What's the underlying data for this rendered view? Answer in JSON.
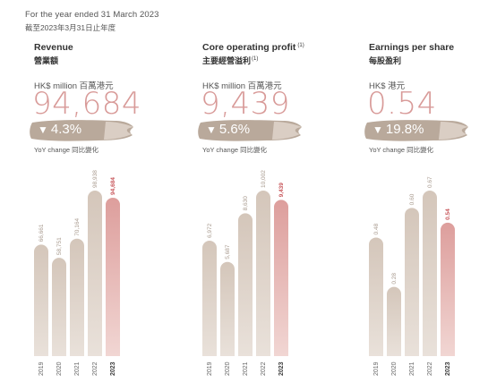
{
  "header": {
    "period_en": "For the year ended 31 March 2023",
    "period_zh": "截至2023年3月31日止年度"
  },
  "panels": [
    {
      "title_en": "Revenue",
      "title_zh": "營業額",
      "title_note": "",
      "unit": "HK$ million 百萬港元",
      "value": "94,684",
      "change": "4.3%",
      "change_direction": "down",
      "change_label": "YoY change 同比變化"
    },
    {
      "title_en": "Core operating profit",
      "title_zh": "主要經營溢利",
      "title_note": "(1)",
      "unit": "HK$ million 百萬港元",
      "value": "9,439",
      "change": "5.6%",
      "change_direction": "down",
      "change_label": "YoY change 同比變化"
    },
    {
      "title_en": "Earnings per share",
      "title_zh": "每股盈利",
      "title_note": "",
      "unit": "HK$ 港元",
      "value": "0.54",
      "change": "19.8%",
      "change_direction": "down",
      "change_label": "YoY change 同比變化"
    }
  ],
  "colors": {
    "accent": "#d89a98",
    "bar_past": "#cfc1b5",
    "bar_current": "#e0a8a6",
    "label_current": "#c8585c",
    "brush": "#b9a99b"
  },
  "chart_data": [
    {
      "type": "bar",
      "title": "Revenue",
      "categories": [
        "2019",
        "2020",
        "2021",
        "2022",
        "2023"
      ],
      "values": [
        66661,
        58751,
        70164,
        98938,
        94684
      ],
      "labels": [
        "66,661",
        "58,751",
        "70,164",
        "98,938",
        "94,684"
      ],
      "ylim": [
        0,
        98938
      ],
      "grid": false
    },
    {
      "type": "bar",
      "title": "Core operating profit",
      "categories": [
        "2019",
        "2020",
        "2021",
        "2022",
        "2023"
      ],
      "values": [
        6972,
        5687,
        8630,
        10002,
        9439
      ],
      "labels": [
        "6,972",
        "5,687",
        "8,630",
        "10,002",
        "9,439"
      ],
      "ylim": [
        0,
        10002
      ],
      "grid": false
    },
    {
      "type": "bar",
      "title": "Earnings per share",
      "categories": [
        "2019",
        "2020",
        "2021",
        "2022",
        "2023"
      ],
      "values": [
        0.48,
        0.28,
        0.6,
        0.67,
        0.54
      ],
      "labels": [
        "0.48",
        "0.28",
        "0.60",
        "0.67",
        "0.54"
      ],
      "ylim": [
        0,
        0.67
      ],
      "grid": false
    }
  ]
}
